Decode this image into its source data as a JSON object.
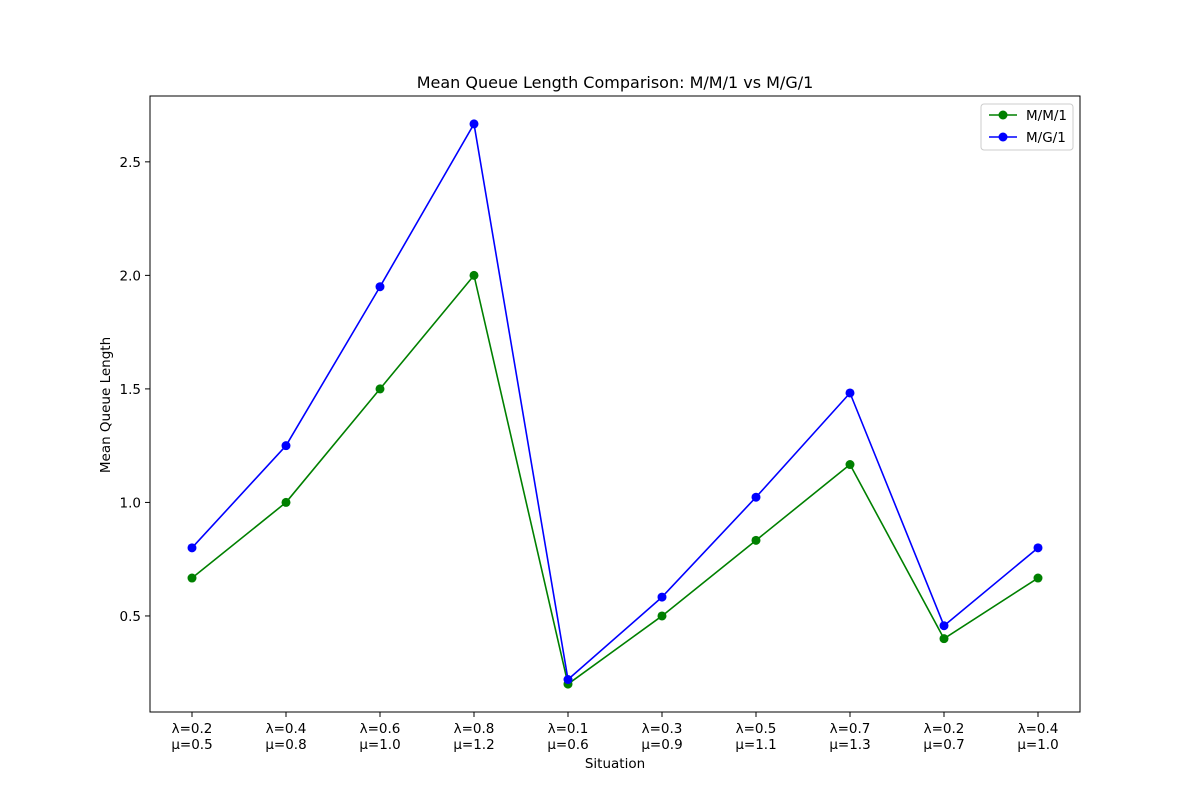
{
  "chart_data": {
    "type": "line",
    "title": "Mean Queue Length Comparison: M/M/1 vs M/G/1",
    "xlabel": "Situation",
    "ylabel": "Mean Queue Length",
    "categories": [
      [
        "λ=0.2",
        "μ=0.5"
      ],
      [
        "λ=0.4",
        "μ=0.8"
      ],
      [
        "λ=0.6",
        "μ=1.0"
      ],
      [
        "λ=0.8",
        "μ=1.2"
      ],
      [
        "λ=0.1",
        "μ=0.6"
      ],
      [
        "λ=0.3",
        "μ=0.9"
      ],
      [
        "λ=0.5",
        "μ=1.1"
      ],
      [
        "λ=0.7",
        "μ=1.3"
      ],
      [
        "λ=0.2",
        "μ=0.7"
      ],
      [
        "λ=0.4",
        "μ=1.0"
      ]
    ],
    "series": [
      {
        "name": "M/M/1",
        "color": "#008000",
        "values": [
          0.667,
          1.0,
          1.5,
          2.0,
          0.2,
          0.5,
          0.833,
          1.167,
          0.4,
          0.667
        ]
      },
      {
        "name": "M/G/1",
        "color": "#0000ff",
        "values": [
          0.8,
          1.25,
          1.95,
          2.667,
          0.22,
          0.583,
          1.023,
          1.482,
          0.457,
          0.8
        ]
      }
    ],
    "yticks": [
      "0.5",
      "1.0",
      "1.5",
      "2.0",
      "2.5"
    ],
    "ylim": [
      0.077,
      2.79
    ],
    "grid": false,
    "legend_position": "top-right"
  }
}
